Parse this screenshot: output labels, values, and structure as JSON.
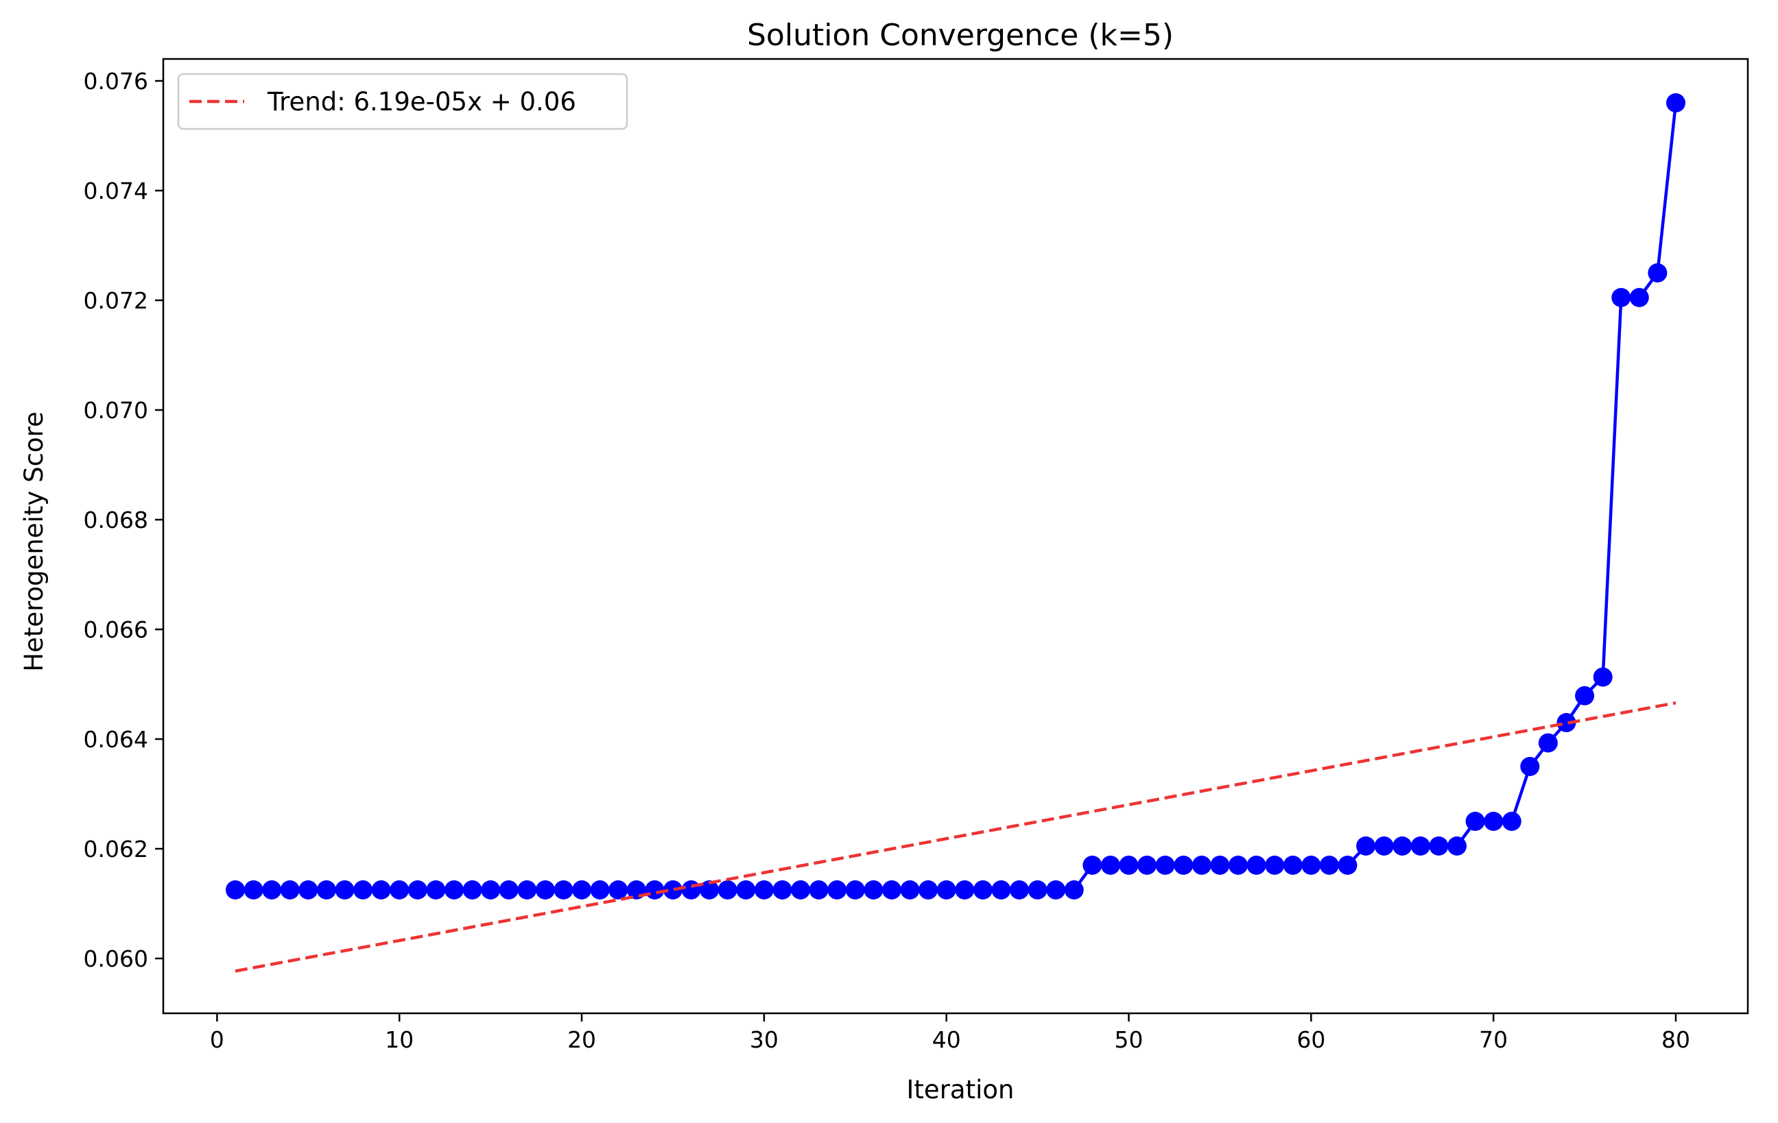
{
  "chart_data": {
    "type": "line",
    "title": "Solution Convergence (k=5)",
    "xlabel": "Iteration",
    "ylabel": "Heterogeneity Score",
    "xlim": [
      -2.95,
      83.95
    ],
    "ylim": [
      0.059,
      0.0764
    ],
    "xticks": [
      0,
      10,
      20,
      30,
      40,
      50,
      60,
      70,
      80
    ],
    "xtick_labels": [
      "0",
      "10",
      "20",
      "30",
      "40",
      "50",
      "60",
      "70",
      "80"
    ],
    "yticks": [
      0.06,
      0.062,
      0.064,
      0.066,
      0.068,
      0.07,
      0.072,
      0.074,
      0.076
    ],
    "ytick_labels": [
      "0.060",
      "0.062",
      "0.064",
      "0.066",
      "0.068",
      "0.070",
      "0.072",
      "0.074",
      "0.076"
    ],
    "grid": false,
    "legend_position": "top-left",
    "series": [
      {
        "kind": "line-markers",
        "color": "#0000ff",
        "x": [
          1,
          2,
          3,
          4,
          5,
          6,
          7,
          8,
          9,
          10,
          11,
          12,
          13,
          14,
          15,
          16,
          17,
          18,
          19,
          20,
          21,
          22,
          23,
          24,
          25,
          26,
          27,
          28,
          29,
          30,
          31,
          32,
          33,
          34,
          35,
          36,
          37,
          38,
          39,
          40,
          41,
          42,
          43,
          44,
          45,
          46,
          47,
          48,
          49,
          50,
          51,
          52,
          53,
          54,
          55,
          56,
          57,
          58,
          59,
          60,
          61,
          62,
          63,
          64,
          65,
          66,
          67,
          68,
          69,
          70,
          71,
          72,
          73,
          74,
          75,
          76,
          77,
          78,
          79,
          80
        ],
        "y": [
          0.06125,
          0.06125,
          0.06125,
          0.06125,
          0.06125,
          0.06125,
          0.06125,
          0.06125,
          0.06125,
          0.06125,
          0.06125,
          0.06125,
          0.06125,
          0.06125,
          0.06125,
          0.06125,
          0.06125,
          0.06125,
          0.06125,
          0.06125,
          0.06125,
          0.06125,
          0.06125,
          0.06125,
          0.06125,
          0.06125,
          0.06125,
          0.06125,
          0.06125,
          0.06125,
          0.06125,
          0.06125,
          0.06125,
          0.06125,
          0.06125,
          0.06125,
          0.06125,
          0.06125,
          0.06125,
          0.06125,
          0.06125,
          0.06125,
          0.06125,
          0.06125,
          0.06125,
          0.06125,
          0.06125,
          0.0617,
          0.0617,
          0.0617,
          0.0617,
          0.0617,
          0.0617,
          0.0617,
          0.0617,
          0.0617,
          0.0617,
          0.0617,
          0.0617,
          0.0617,
          0.0617,
          0.0617,
          0.06205,
          0.06205,
          0.06205,
          0.06205,
          0.06205,
          0.06205,
          0.0625,
          0.0625,
          0.0625,
          0.0635,
          0.06393,
          0.0643,
          0.06479,
          0.06513,
          0.07205,
          0.07205,
          0.0725,
          0.0756
        ]
      },
      {
        "kind": "dashed-line",
        "name": "Trend: 6.19e-05x + 0.06",
        "color": "#ee3333",
        "x": [
          1,
          80
        ],
        "y": [
          0.05977,
          0.06466
        ]
      }
    ]
  }
}
